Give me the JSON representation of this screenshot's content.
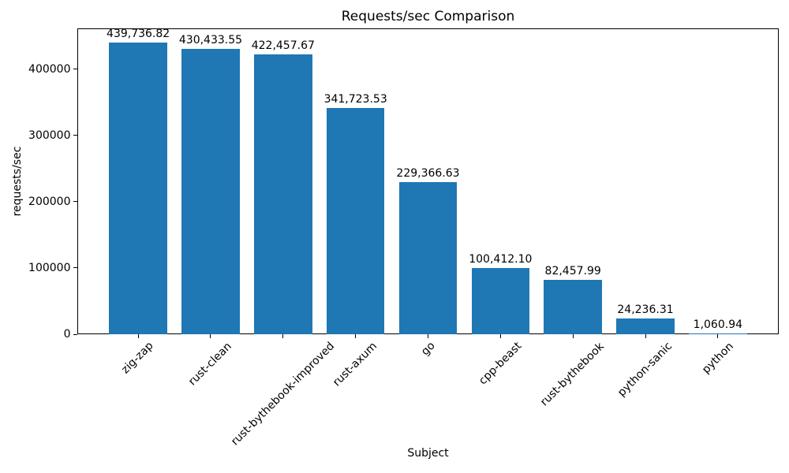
{
  "chart_data": {
    "type": "bar",
    "title": "Requests/sec Comparison",
    "xlabel": "Subject",
    "ylabel": "requests/sec",
    "categories": [
      "zig-zap",
      "rust-clean",
      "rust-bythebook-improved",
      "rust-axum",
      "go",
      "cpp-beast",
      "rust-bythebook",
      "python-sanic",
      "python"
    ],
    "values": [
      439736.82,
      430433.55,
      422457.67,
      341723.53,
      229366.63,
      100412.1,
      82457.99,
      24236.31,
      1060.94
    ],
    "value_labels": [
      "439,736.82",
      "430,433.55",
      "422,457.67",
      "341,723.53",
      "229,366.63",
      "100,412.10",
      "82,457.99",
      "24,236.31",
      "1,060.94"
    ],
    "yticks": [
      0,
      100000,
      200000,
      300000,
      400000
    ],
    "ylim": [
      0,
      461724
    ],
    "bar_color": "#1f77b4",
    "grid": false,
    "legend": null,
    "background": "#ffffff"
  }
}
